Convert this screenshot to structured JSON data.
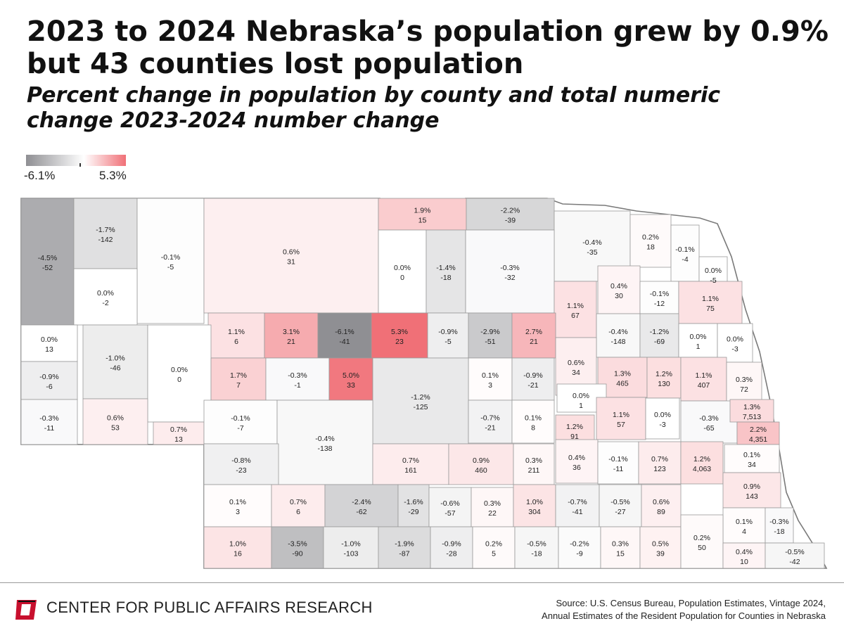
{
  "header": {
    "title": "2023 to 2024 Nebraska’s population grew by 0.9%\nbut 43 counties lost population",
    "subtitle": "Percent change in population by county and total numeric\nchange 2023-2024 number change"
  },
  "legend": {
    "min_label": "-6.1%",
    "max_label": "5.3%",
    "min_value": -6.1,
    "max_value": 5.3,
    "color_negative": "#8f8f93",
    "color_zero": "#ffffff",
    "color_positive": "#f07077"
  },
  "colors": {
    "state_outline": "#7a7a7a",
    "county_border": "#9a9a9a",
    "text": "#222222",
    "logo_red": "#c8102e"
  },
  "counties": [
    {
      "pct": "-4.5%",
      "num": "-52",
      "value": -4.5
    },
    {
      "pct": "-1.7%",
      "num": "-142",
      "value": -1.7
    },
    {
      "pct": "-0.1%",
      "num": "-5",
      "value": -0.1
    },
    {
      "pct": "0.6%",
      "num": "31",
      "value": 0.6
    },
    {
      "pct": "1.9%",
      "num": "15",
      "value": 1.9
    },
    {
      "pct": "-2.2%",
      "num": "-39",
      "value": -2.2
    },
    {
      "pct": "-0.4%",
      "num": "-35",
      "value": -0.4
    },
    {
      "pct": "0.2%",
      "num": "18",
      "value": 0.2
    },
    {
      "pct": "-0.1%",
      "num": "-4",
      "value": -0.1
    },
    {
      "pct": "0.0%",
      "num": "-5",
      "value": 0.0
    },
    {
      "pct": "0.0%",
      "num": "-2",
      "value": 0.0
    },
    {
      "pct": "0.0%",
      "num": "0",
      "value": 0.0
    },
    {
      "pct": "-1.4%",
      "num": "-18",
      "value": -1.4
    },
    {
      "pct": "-0.3%",
      "num": "-32",
      "value": -0.3
    },
    {
      "pct": "0.4%",
      "num": "30",
      "value": 0.4
    },
    {
      "pct": "1.1%",
      "num": "67",
      "value": 1.1
    },
    {
      "pct": "-0.1%",
      "num": "-12",
      "value": -0.1
    },
    {
      "pct": "1.1%",
      "num": "75",
      "value": 1.1
    },
    {
      "pct": "0.0%",
      "num": "13",
      "value": 0.0
    },
    {
      "pct": "-1.0%",
      "num": "-46",
      "value": -1.0
    },
    {
      "pct": "1.1%",
      "num": "6",
      "value": 1.1
    },
    {
      "pct": "3.1%",
      "num": "21",
      "value": 3.1
    },
    {
      "pct": "-6.1%",
      "num": "-41",
      "value": -6.1
    },
    {
      "pct": "5.3%",
      "num": "23",
      "value": 5.3
    },
    {
      "pct": "-0.9%",
      "num": "-5",
      "value": -0.9
    },
    {
      "pct": "-2.9%",
      "num": "-51",
      "value": -2.9
    },
    {
      "pct": "2.7%",
      "num": "21",
      "value": 2.7
    },
    {
      "pct": "-0.4%",
      "num": "-148",
      "value": -0.4
    },
    {
      "pct": "-1.2%",
      "num": "-69",
      "value": -1.2
    },
    {
      "pct": "0.0%",
      "num": "1",
      "value": 0.0
    },
    {
      "pct": "0.0%",
      "num": "-3",
      "value": 0.0
    },
    {
      "pct": "-0.9%",
      "num": "-6",
      "value": -0.9
    },
    {
      "pct": "0.0%",
      "num": "0",
      "value": 0.0
    },
    {
      "pct": "1.7%",
      "num": "7",
      "value": 1.7
    },
    {
      "pct": "-0.3%",
      "num": "-1",
      "value": -0.3
    },
    {
      "pct": "5.0%",
      "num": "33",
      "value": 5.0
    },
    {
      "pct": "0.1%",
      "num": "3",
      "value": 0.1
    },
    {
      "pct": "-0.9%",
      "num": "-21",
      "value": -0.9
    },
    {
      "pct": "0.6%",
      "num": "34",
      "value": 0.6
    },
    {
      "pct": "1.3%",
      "num": "465",
      "value": 1.3
    },
    {
      "pct": "1.2%",
      "num": "130",
      "value": 1.2
    },
    {
      "pct": "1.1%",
      "num": "407",
      "value": 1.1
    },
    {
      "pct": "0.3%",
      "num": "72",
      "value": 0.3
    },
    {
      "pct": "-0.3%",
      "num": "-11",
      "value": -0.3
    },
    {
      "pct": "0.6%",
      "num": "53",
      "value": 0.6
    },
    {
      "pct": "0.7%",
      "num": "13",
      "value": 0.7
    },
    {
      "pct": "-0.1%",
      "num": "-7",
      "value": -0.1
    },
    {
      "pct": "-1.2%",
      "num": "-125",
      "value": -1.2
    },
    {
      "pct": "0.0%",
      "num": "1",
      "value": 0.0
    },
    {
      "pct": "-0.4%",
      "num": "-138",
      "value": -0.4
    },
    {
      "pct": "-0.7%",
      "num": "-21",
      "value": -0.7
    },
    {
      "pct": "0.1%",
      "num": "8",
      "value": 0.1
    },
    {
      "pct": "1.1%",
      "num": "57",
      "value": 1.1
    },
    {
      "pct": "0.0%",
      "num": "-3",
      "value": 0.0
    },
    {
      "pct": "-0.3%",
      "num": "-65",
      "value": -0.3
    },
    {
      "pct": "1.3%",
      "num": "7,513",
      "value": 1.3
    },
    {
      "pct": "1.2%",
      "num": "91",
      "value": 1.2
    },
    {
      "pct": "2.2%",
      "num": "4,351",
      "value": 2.2
    },
    {
      "pct": "-0.8%",
      "num": "-23",
      "value": -0.8
    },
    {
      "pct": "0.7%",
      "num": "161",
      "value": 0.7
    },
    {
      "pct": "0.9%",
      "num": "460",
      "value": 0.9
    },
    {
      "pct": "0.3%",
      "num": "211",
      "value": 0.3
    },
    {
      "pct": "0.4%",
      "num": "36",
      "value": 0.4
    },
    {
      "pct": "-0.1%",
      "num": "-11",
      "value": -0.1
    },
    {
      "pct": "0.7%",
      "num": "123",
      "value": 0.7
    },
    {
      "pct": "1.2%",
      "num": "4,063",
      "value": 1.2
    },
    {
      "pct": "0.1%",
      "num": "34",
      "value": 0.1
    },
    {
      "pct": "0.9%",
      "num": "143",
      "value": 0.9
    },
    {
      "pct": "0.1%",
      "num": "3",
      "value": 0.1
    },
    {
      "pct": "0.7%",
      "num": "6",
      "value": 0.7
    },
    {
      "pct": "-2.4%",
      "num": "-62",
      "value": -2.4
    },
    {
      "pct": "-1.6%",
      "num": "-29",
      "value": -1.6
    },
    {
      "pct": "-0.6%",
      "num": "-57",
      "value": -0.6
    },
    {
      "pct": "0.3%",
      "num": "22",
      "value": 0.3
    },
    {
      "pct": "1.0%",
      "num": "304",
      "value": 1.0
    },
    {
      "pct": "-0.7%",
      "num": "-41",
      "value": -0.7
    },
    {
      "pct": "-0.5%",
      "num": "-27",
      "value": -0.5
    },
    {
      "pct": "0.6%",
      "num": "89",
      "value": 0.6
    },
    {
      "pct": "0.1%",
      "num": "4",
      "value": 0.1
    },
    {
      "pct": "-0.3%",
      "num": "-18",
      "value": -0.3
    },
    {
      "pct": "1.0%",
      "num": "16",
      "value": 1.0
    },
    {
      "pct": "-3.5%",
      "num": "-90",
      "value": -3.5
    },
    {
      "pct": "-1.0%",
      "num": "-103",
      "value": -1.0
    },
    {
      "pct": "-1.9%",
      "num": "-87",
      "value": -1.9
    },
    {
      "pct": "-0.9%",
      "num": "-28",
      "value": -0.9
    },
    {
      "pct": "0.2%",
      "num": "5",
      "value": 0.2
    },
    {
      "pct": "-0.5%",
      "num": "-18",
      "value": -0.5
    },
    {
      "pct": "-0.2%",
      "num": "-9",
      "value": -0.2
    },
    {
      "pct": "0.3%",
      "num": "15",
      "value": 0.3
    },
    {
      "pct": "0.5%",
      "num": "39",
      "value": 0.5
    },
    {
      "pct": "0.2%",
      "num": "50",
      "value": 0.2
    },
    {
      "pct": "0.4%",
      "num": "10",
      "value": 0.4
    },
    {
      "pct": "-0.5%",
      "num": "-42",
      "value": -0.5
    }
  ],
  "footer": {
    "org": "CENTER FOR PUBLIC AFFAIRS RESEARCH",
    "source_line1": "Source: U.S. Census Bureau, Population Estimates, Vintage 2024,",
    "source_line2": "Annual Estimates of the Resident Population for Counties in Nebraska"
  }
}
